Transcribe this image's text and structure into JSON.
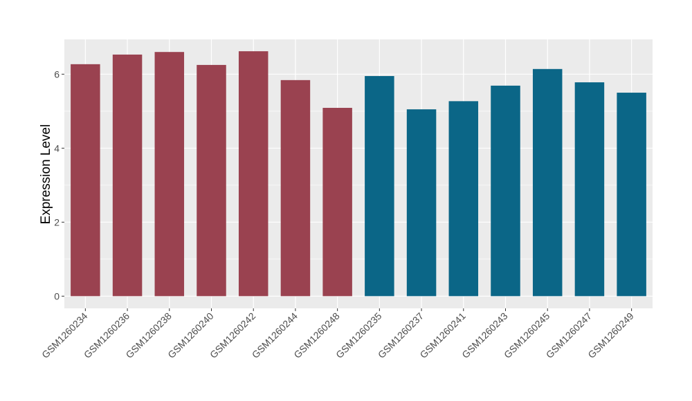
{
  "chart_data": {
    "type": "bar",
    "title": "",
    "xlabel": "",
    "ylabel": "Expression Level",
    "ylim": [
      -0.33,
      6.94
    ],
    "yticks": [
      0,
      2,
      4,
      6
    ],
    "grid": true,
    "categories": [
      "GSM1260234",
      "GSM1260236",
      "GSM1260238",
      "GSM1260240",
      "GSM1260242",
      "GSM1260244",
      "GSM1260248",
      "GSM1260235",
      "GSM1260237",
      "GSM1260241",
      "GSM1260243",
      "GSM1260245",
      "GSM1260247",
      "GSM1260249"
    ],
    "values": [
      6.27,
      6.53,
      6.6,
      6.25,
      6.62,
      5.84,
      5.09,
      5.95,
      5.05,
      5.27,
      5.69,
      6.14,
      5.78,
      5.5
    ],
    "groups": [
      "A",
      "A",
      "A",
      "A",
      "A",
      "A",
      "A",
      "B",
      "B",
      "B",
      "B",
      "B",
      "B",
      "B"
    ],
    "colors": {
      "A": "#9A4250",
      "B": "#0B6687"
    },
    "panel_background": "#EBEBEB"
  }
}
